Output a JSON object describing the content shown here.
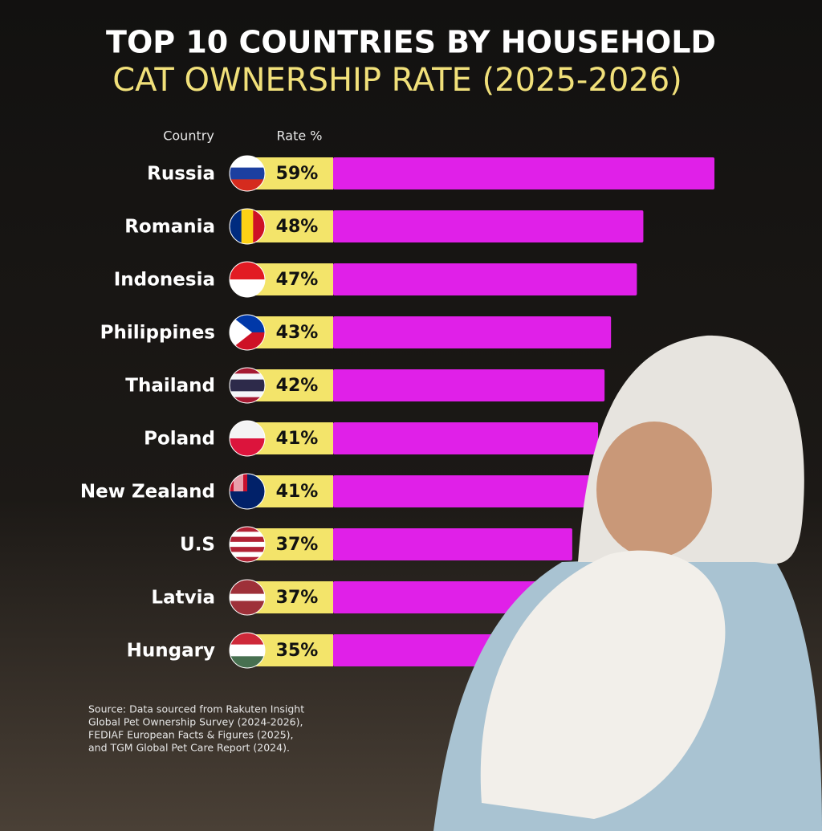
{
  "chart_data": {
    "type": "bar",
    "orientation": "horizontal",
    "title": "TOP 10 COUNTRIES BY HOUSEHOLD",
    "subtitle": "CAT OWNERSHIP RATE (2025-2026)",
    "category_header": "Country",
    "value_header": "Rate %",
    "categories": [
      "Russia",
      "Romania",
      "Indonesia",
      "Philippines",
      "Thailand",
      "Poland",
      "New Zealand",
      "U.S",
      "Latvia",
      "Hungary"
    ],
    "values": [
      59,
      48,
      47,
      43,
      42,
      41,
      41,
      37,
      37,
      35
    ],
    "value_labels": [
      "59%",
      "48%",
      "47%",
      "43%",
      "42%",
      "41%",
      "41%",
      "37%",
      "37%",
      "35%"
    ],
    "color": "#e020e8",
    "label_color": "#f3e46a",
    "source": [
      "Source: Data sourced from Rakuten Insight",
      "Global Pet Ownership Survey (2024-2026),",
      "FEDIAF European Facts & Figures (2025),",
      "and TGM Global Pet Care Report (2024)."
    ]
  }
}
